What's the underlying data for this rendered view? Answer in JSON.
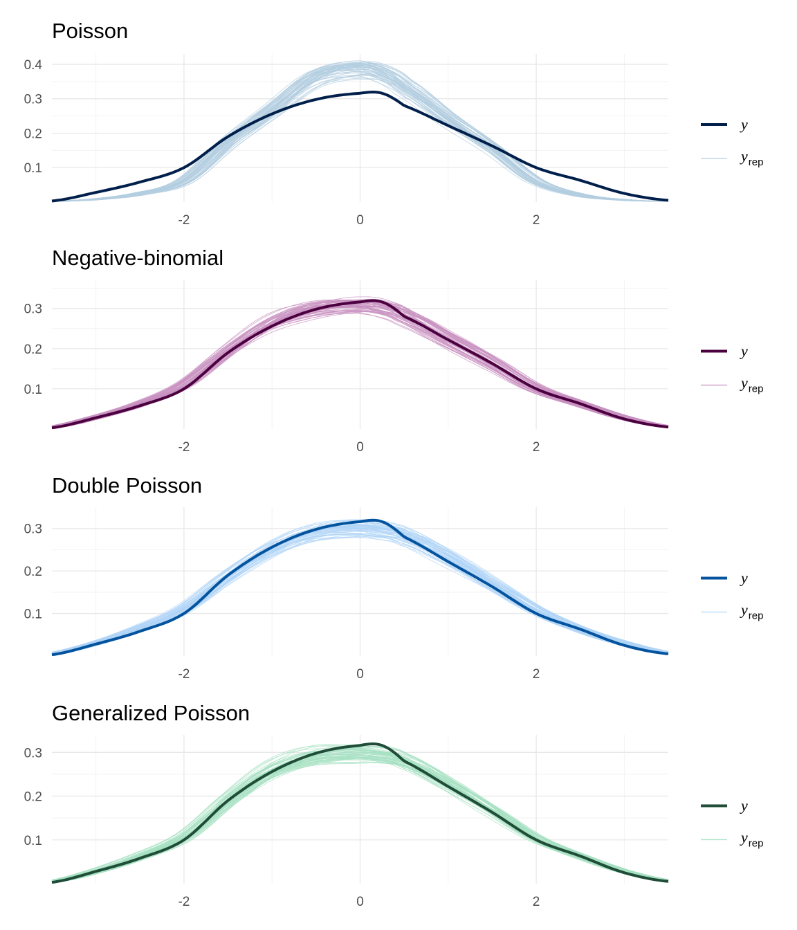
{
  "chart_data": [
    {
      "type": "line",
      "title": "Poisson",
      "xlim": [
        -3.5,
        3.5
      ],
      "ylim": [
        0,
        0.43
      ],
      "x_ticks": [
        -2,
        0,
        2
      ],
      "y_ticks": [
        0.1,
        0.2,
        0.3,
        0.4
      ],
      "grid": true,
      "legend_position": "right",
      "colors": {
        "y": "#011f4b",
        "yrep": "#b3cde0"
      },
      "legend": {
        "y": "y",
        "yrep_base": "y",
        "yrep_sub": "rep"
      },
      "x": [
        -3.5,
        -3.0,
        -2.5,
        -2.0,
        -1.5,
        -1.0,
        -0.5,
        0.0,
        0.25,
        0.5,
        1.0,
        1.5,
        2.0,
        2.5,
        3.0,
        3.5
      ],
      "series": [
        {
          "name": "y",
          "values": [
            0.003,
            0.028,
            0.058,
            0.1,
            0.19,
            0.256,
            0.298,
            0.316,
            0.316,
            0.28,
            0.222,
            0.163,
            0.1,
            0.063,
            0.025,
            0.005
          ]
        },
        {
          "name": "y_rep",
          "values": [
            0.002,
            0.008,
            0.024,
            0.06,
            0.17,
            0.265,
            0.36,
            0.385,
            0.37,
            0.33,
            0.24,
            0.155,
            0.06,
            0.02,
            0.006,
            0.002
          ]
        }
      ]
    },
    {
      "type": "line",
      "title": "Negative-binomial",
      "xlim": [
        -3.5,
        3.5
      ],
      "ylim": [
        0,
        0.37
      ],
      "x_ticks": [
        -2,
        0,
        2
      ],
      "y_ticks": [
        0.1,
        0.2,
        0.3
      ],
      "grid": true,
      "legend_position": "right",
      "colors": {
        "y": "#4b0140",
        "yrep": "#c890c0"
      },
      "legend": {
        "y": "y",
        "yrep_base": "y",
        "yrep_sub": "rep"
      },
      "x": [
        -3.5,
        -3.0,
        -2.5,
        -2.0,
        -1.5,
        -1.0,
        -0.5,
        0.0,
        0.25,
        0.5,
        1.0,
        1.5,
        2.0,
        2.5,
        3.0,
        3.5
      ],
      "series": [
        {
          "name": "y",
          "values": [
            0.003,
            0.028,
            0.058,
            0.1,
            0.19,
            0.256,
            0.298,
            0.316,
            0.316,
            0.28,
            0.222,
            0.163,
            0.1,
            0.063,
            0.025,
            0.005
          ]
        },
        {
          "name": "y_rep",
          "values": [
            0.005,
            0.028,
            0.06,
            0.108,
            0.19,
            0.26,
            0.295,
            0.305,
            0.3,
            0.28,
            0.222,
            0.163,
            0.1,
            0.063,
            0.028,
            0.006
          ]
        }
      ]
    },
    {
      "type": "line",
      "title": "Double Poisson",
      "xlim": [
        -3.5,
        3.5
      ],
      "ylim": [
        0,
        0.35
      ],
      "x_ticks": [
        -2,
        0,
        2
      ],
      "y_ticks": [
        0.1,
        0.2,
        0.3
      ],
      "grid": true,
      "legend_position": "right",
      "colors": {
        "y": "#03539e",
        "yrep": "#b0d4f7"
      },
      "legend": {
        "y": "y",
        "yrep_base": "y",
        "yrep_sub": "rep"
      },
      "x": [
        -3.5,
        -3.0,
        -2.5,
        -2.0,
        -1.5,
        -1.0,
        -0.5,
        0.0,
        0.25,
        0.5,
        1.0,
        1.5,
        2.0,
        2.5,
        3.0,
        3.5
      ],
      "series": [
        {
          "name": "y",
          "values": [
            0.003,
            0.028,
            0.058,
            0.1,
            0.19,
            0.256,
            0.298,
            0.316,
            0.316,
            0.28,
            0.222,
            0.163,
            0.1,
            0.063,
            0.025,
            0.005
          ]
        },
        {
          "name": "y_rep",
          "values": [
            0.006,
            0.03,
            0.065,
            0.11,
            0.185,
            0.25,
            0.29,
            0.3,
            0.295,
            0.282,
            0.232,
            0.17,
            0.108,
            0.063,
            0.03,
            0.008
          ]
        }
      ]
    },
    {
      "type": "line",
      "title": "Generalized Poisson",
      "xlim": [
        -3.5,
        3.5
      ],
      "ylim": [
        0,
        0.34
      ],
      "x_ticks": [
        -2,
        0,
        2
      ],
      "y_ticks": [
        0.1,
        0.2,
        0.3
      ],
      "grid": true,
      "legend_position": "right",
      "colors": {
        "y": "#1f4d37",
        "yrep": "#a6e0c2"
      },
      "legend": {
        "y": "y",
        "yrep_base": "y",
        "yrep_sub": "rep"
      },
      "x": [
        -3.5,
        -3.0,
        -2.5,
        -2.0,
        -1.5,
        -1.0,
        -0.5,
        0.0,
        0.25,
        0.5,
        1.0,
        1.5,
        2.0,
        2.5,
        3.0,
        3.5
      ],
      "series": [
        {
          "name": "y",
          "values": [
            0.003,
            0.028,
            0.058,
            0.1,
            0.19,
            0.256,
            0.298,
            0.316,
            0.316,
            0.28,
            0.222,
            0.163,
            0.1,
            0.063,
            0.025,
            0.005
          ]
        },
        {
          "name": "y_rep",
          "values": [
            0.005,
            0.028,
            0.062,
            0.108,
            0.19,
            0.258,
            0.292,
            0.3,
            0.295,
            0.28,
            0.228,
            0.168,
            0.105,
            0.063,
            0.028,
            0.007
          ]
        }
      ]
    }
  ]
}
